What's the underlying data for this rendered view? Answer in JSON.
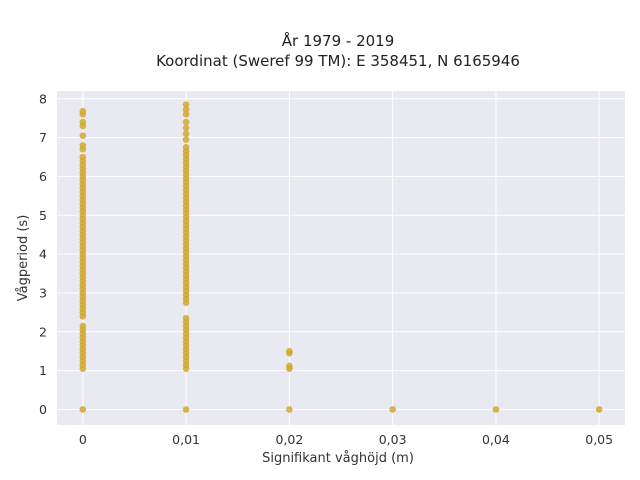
{
  "chart_data": {
    "type": "scatter",
    "title_lines": [
      "År 1979 - 2019",
      "Koordinat (Sweref 99 TM): E 358451, N 6165946"
    ],
    "xlabel": "Signifikant våghöjd (m)",
    "ylabel": "Vågperiod (s)",
    "xlim": [
      -0.0025,
      0.0525
    ],
    "ylim": [
      -0.4,
      8.2
    ],
    "x_ticks": [
      0,
      0.01,
      0.02,
      0.03,
      0.04,
      0.05
    ],
    "x_tick_labels": [
      "0",
      "0,01",
      "0,02",
      "0,03",
      "0,04",
      "0,05"
    ],
    "y_ticks": [
      0,
      1,
      2,
      3,
      4,
      5,
      6,
      7,
      8
    ],
    "y_tick_labels": [
      "0",
      "1",
      "2",
      "3",
      "4",
      "5",
      "6",
      "7",
      "8"
    ],
    "grid": true,
    "legend": "none",
    "colors": {
      "marker": "#d4a72c",
      "plot_bg": "#e9e9f1",
      "grid": "#ffffff"
    },
    "series": [
      {
        "points": [
          [
            0,
            0
          ],
          [
            0,
            1.05
          ],
          [
            0,
            1.15
          ],
          [
            0,
            1.25
          ],
          [
            0,
            1.35
          ],
          [
            0,
            1.45
          ],
          [
            0,
            1.55
          ],
          [
            0,
            1.65
          ],
          [
            0,
            1.75
          ],
          [
            0,
            1.85
          ],
          [
            0,
            1.95
          ],
          [
            0,
            2.05
          ],
          [
            0,
            2.15
          ],
          [
            0,
            2.4
          ],
          [
            0,
            2.5
          ],
          [
            0,
            2.6
          ],
          [
            0,
            2.7
          ],
          [
            0,
            2.8
          ],
          [
            0,
            2.9
          ],
          [
            0,
            3.0
          ],
          [
            0,
            3.1
          ],
          [
            0,
            3.2
          ],
          [
            0,
            3.3
          ],
          [
            0,
            3.4
          ],
          [
            0,
            3.5
          ],
          [
            0,
            3.6
          ],
          [
            0,
            3.7
          ],
          [
            0,
            3.8
          ],
          [
            0,
            3.9
          ],
          [
            0,
            4.0
          ],
          [
            0,
            4.1
          ],
          [
            0,
            4.2
          ],
          [
            0,
            4.3
          ],
          [
            0,
            4.4
          ],
          [
            0,
            4.5
          ],
          [
            0,
            4.6
          ],
          [
            0,
            4.7
          ],
          [
            0,
            4.8
          ],
          [
            0,
            4.9
          ],
          [
            0,
            5.0
          ],
          [
            0,
            5.1
          ],
          [
            0,
            5.2
          ],
          [
            0,
            5.3
          ],
          [
            0,
            5.4
          ],
          [
            0,
            5.5
          ],
          [
            0,
            5.6
          ],
          [
            0,
            5.7
          ],
          [
            0,
            5.8
          ],
          [
            0,
            5.9
          ],
          [
            0,
            6.0
          ],
          [
            0,
            6.1
          ],
          [
            0,
            6.2
          ],
          [
            0,
            6.3
          ],
          [
            0,
            6.4
          ],
          [
            0,
            6.5
          ],
          [
            0,
            6.7
          ],
          [
            0,
            6.8
          ],
          [
            0,
            7.05
          ],
          [
            0,
            7.3
          ],
          [
            0,
            7.4
          ],
          [
            0,
            7.6
          ],
          [
            0,
            7.68
          ],
          [
            0.01,
            0
          ],
          [
            0.01,
            1.05
          ],
          [
            0.01,
            1.15
          ],
          [
            0.01,
            1.25
          ],
          [
            0.01,
            1.35
          ],
          [
            0.01,
            1.45
          ],
          [
            0.01,
            1.55
          ],
          [
            0.01,
            1.65
          ],
          [
            0.01,
            1.75
          ],
          [
            0.01,
            1.85
          ],
          [
            0.01,
            1.95
          ],
          [
            0.01,
            2.05
          ],
          [
            0.01,
            2.15
          ],
          [
            0.01,
            2.25
          ],
          [
            0.01,
            2.35
          ],
          [
            0.01,
            2.75
          ],
          [
            0.01,
            2.85
          ],
          [
            0.01,
            2.95
          ],
          [
            0.01,
            3.05
          ],
          [
            0.01,
            3.15
          ],
          [
            0.01,
            3.25
          ],
          [
            0.01,
            3.35
          ],
          [
            0.01,
            3.45
          ],
          [
            0.01,
            3.55
          ],
          [
            0.01,
            3.65
          ],
          [
            0.01,
            3.75
          ],
          [
            0.01,
            3.85
          ],
          [
            0.01,
            3.95
          ],
          [
            0.01,
            4.05
          ],
          [
            0.01,
            4.15
          ],
          [
            0.01,
            4.25
          ],
          [
            0.01,
            4.35
          ],
          [
            0.01,
            4.45
          ],
          [
            0.01,
            4.55
          ],
          [
            0.01,
            4.65
          ],
          [
            0.01,
            4.75
          ],
          [
            0.01,
            4.85
          ],
          [
            0.01,
            4.95
          ],
          [
            0.01,
            5.05
          ],
          [
            0.01,
            5.15
          ],
          [
            0.01,
            5.25
          ],
          [
            0.01,
            5.35
          ],
          [
            0.01,
            5.45
          ],
          [
            0.01,
            5.55
          ],
          [
            0.01,
            5.65
          ],
          [
            0.01,
            5.75
          ],
          [
            0.01,
            5.85
          ],
          [
            0.01,
            5.95
          ],
          [
            0.01,
            6.05
          ],
          [
            0.01,
            6.15
          ],
          [
            0.01,
            6.25
          ],
          [
            0.01,
            6.35
          ],
          [
            0.01,
            6.45
          ],
          [
            0.01,
            6.55
          ],
          [
            0.01,
            6.65
          ],
          [
            0.01,
            6.75
          ],
          [
            0.01,
            6.95
          ],
          [
            0.01,
            7.1
          ],
          [
            0.01,
            7.25
          ],
          [
            0.01,
            7.4
          ],
          [
            0.01,
            7.6
          ],
          [
            0.01,
            7.72
          ],
          [
            0.01,
            7.85
          ],
          [
            0.02,
            0
          ],
          [
            0.02,
            1.05
          ],
          [
            0.02,
            1.12
          ],
          [
            0.02,
            1.45
          ],
          [
            0.02,
            1.5
          ],
          [
            0.03,
            0
          ],
          [
            0.04,
            0
          ],
          [
            0.05,
            0
          ]
        ]
      }
    ]
  }
}
